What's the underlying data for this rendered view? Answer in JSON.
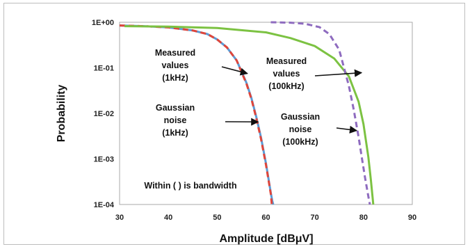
{
  "chart_data": {
    "type": "line",
    "xlabel": "Amplitude [dBμV]",
    "ylabel": "Probability",
    "xlim": [
      30,
      90
    ],
    "ylim": [
      0.0001,
      1
    ],
    "y_scale": "log",
    "grid": false,
    "x_ticks": [
      "30",
      "40",
      "50",
      "60",
      "70",
      "80",
      "90"
    ],
    "y_ticks": [
      "1E+00",
      "1E-01",
      "1E-02",
      "1E-03",
      "1E-04"
    ],
    "y_tick_values": [
      1,
      0.1,
      0.01,
      0.001,
      0.0001
    ],
    "series": [
      {
        "color": "#5b9bd5",
        "style": "solid",
        "x": [
          30,
          35,
          40,
          45,
          48,
          50,
          52,
          54,
          56,
          57,
          58,
          59,
          60,
          60.5,
          61,
          61.3,
          61.5
        ],
        "y": [
          0.85,
          0.82,
          0.77,
          0.66,
          0.55,
          0.42,
          0.28,
          0.145,
          0.047,
          0.022,
          0.0085,
          0.0029,
          0.0008,
          0.00038,
          0.00018,
          0.00012,
          0.0001
        ]
      },
      {
        "color": "#e0453a",
        "style": "dashed",
        "x": [
          30,
          35,
          40,
          45,
          48,
          50,
          52,
          54,
          56,
          57,
          58,
          59,
          60,
          60.5,
          61,
          61.2
        ],
        "y": [
          0.85,
          0.82,
          0.77,
          0.66,
          0.55,
          0.42,
          0.28,
          0.145,
          0.045,
          0.021,
          0.008,
          0.0027,
          0.00075,
          0.00036,
          0.00017,
          0.0001
        ]
      },
      {
        "color": "#7cc242",
        "style": "solid",
        "x": [
          31,
          40,
          50,
          60,
          65,
          70,
          74,
          77,
          79,
          80,
          81,
          81.5,
          82
        ],
        "y": [
          0.82,
          0.8,
          0.75,
          0.6,
          0.45,
          0.3,
          0.16,
          0.065,
          0.018,
          0.0058,
          0.0011,
          0.00035,
          0.0001
        ]
      },
      {
        "color": "#8e6bbf",
        "style": "dashed",
        "x": [
          61,
          65,
          68,
          71,
          73,
          75,
          77,
          78,
          79,
          79.7,
          80.3,
          81,
          81.3
        ],
        "y": [
          1,
          0.98,
          0.93,
          0.78,
          0.55,
          0.25,
          0.04,
          0.012,
          0.003,
          0.001,
          0.0004,
          0.00015,
          0.0001
        ]
      }
    ],
    "annotations": [
      {
        "text": [
          "Measured",
          "values",
          "(1kHz)"
        ],
        "arrow_to": [
          56.2,
          0.075
        ]
      },
      {
        "text": [
          "Gaussian",
          "noise",
          "(1kHz)"
        ],
        "arrow_to": [
          58.4,
          0.0065
        ]
      },
      {
        "text": [
          "Measured",
          "values",
          "(100kHz)"
        ],
        "arrow_to": [
          79.6,
          0.078
        ]
      },
      {
        "text": [
          "Gaussian",
          "noise",
          "(100kHz)"
        ],
        "arrow_to": [
          78.6,
          0.0042
        ]
      },
      {
        "text": [
          "Within ( ) is bandwidth"
        ]
      }
    ]
  }
}
